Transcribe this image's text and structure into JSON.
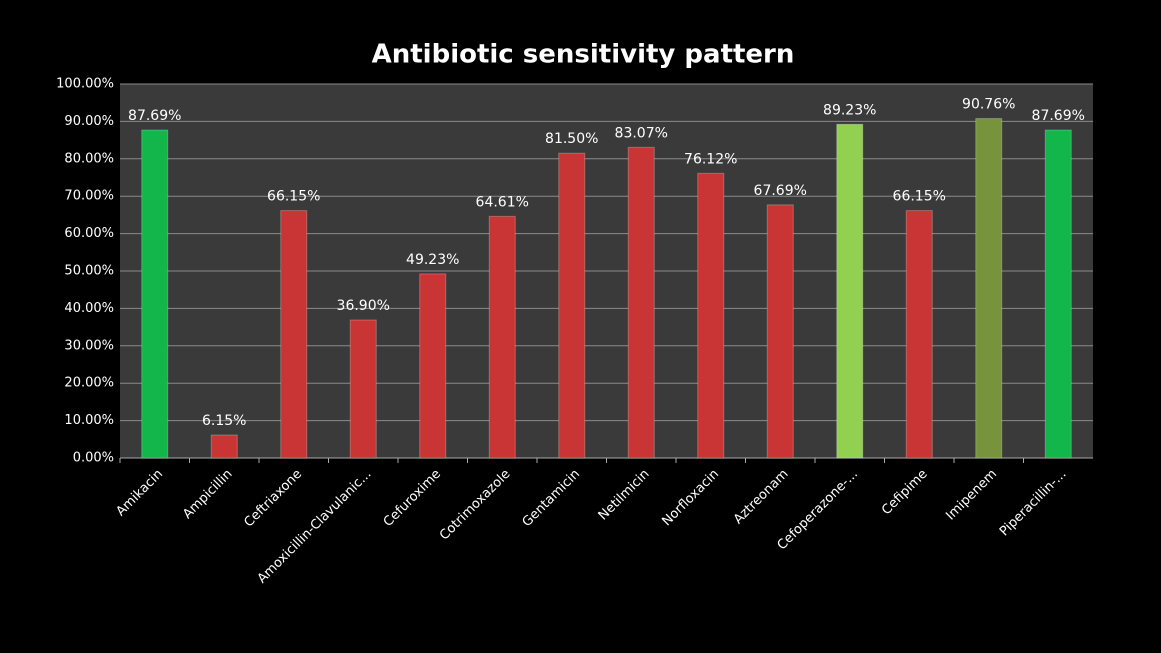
{
  "chart_data": {
    "type": "bar",
    "title": "Antibiotic sensitivity pattern",
    "categories": [
      "Amikacin",
      "Ampicillin",
      "Ceftriaxone",
      "Amoxicillin-Clavulanic...",
      "Cefuroxime",
      "Cotrimoxazole",
      "Gentamicin",
      "Netilmicin",
      "Norfloxacin",
      "Aztreonam",
      "Cefoperazone-...",
      "Cefipime",
      "Imipenem",
      "Piperacillin-..."
    ],
    "values": [
      87.69,
      6.15,
      66.15,
      36.9,
      49.23,
      64.61,
      81.5,
      83.07,
      76.12,
      67.69,
      89.23,
      66.15,
      90.76,
      87.69
    ],
    "value_labels": [
      "87.69%",
      "6.15%",
      "66.15%",
      "36.90%",
      "49.23%",
      "64.61%",
      "81.50%",
      "83.07%",
      "76.12%",
      "67.69%",
      "89.23%",
      "66.15%",
      "90.76%",
      "87.69%"
    ],
    "colors": [
      "#12b64a",
      "#c93434",
      "#c93434",
      "#c93434",
      "#c93434",
      "#c93434",
      "#c93434",
      "#c93434",
      "#c93434",
      "#c93434",
      "#92d050",
      "#c93434",
      "#77933c",
      "#12b64a"
    ],
    "ylim": [
      0,
      100
    ],
    "yticks": [
      {
        "value": 0,
        "label": "0.00%"
      },
      {
        "value": 10,
        "label": "10.00%"
      },
      {
        "value": 20,
        "label": "20.00%"
      },
      {
        "value": 30,
        "label": "30.00%"
      },
      {
        "value": 40,
        "label": "40.00%"
      },
      {
        "value": 50,
        "label": "50.00%"
      },
      {
        "value": 60,
        "label": "60.00%"
      },
      {
        "value": 70,
        "label": "70.00%"
      },
      {
        "value": 80,
        "label": "80.00%"
      },
      {
        "value": 90,
        "label": "90.00%"
      },
      {
        "value": 100,
        "label": "100.00%"
      }
    ],
    "grid": true
  }
}
